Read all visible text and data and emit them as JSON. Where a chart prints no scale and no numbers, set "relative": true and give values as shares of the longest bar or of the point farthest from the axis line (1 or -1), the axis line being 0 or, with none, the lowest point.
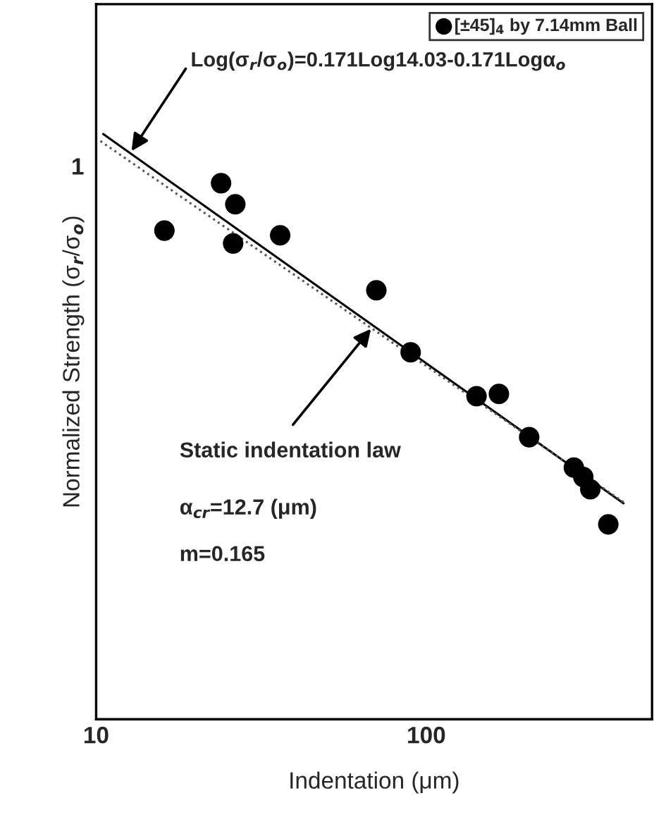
{
  "chart_data": {
    "type": "scatter",
    "xlabel": "Indentation (μm)",
    "ylabel": "Normalized Strength (σ$_{r}$/σ$_{o}$)",
    "log": "x",
    "xlim": [
      10,
      483
    ],
    "xticks": [
      10,
      100
    ],
    "relative": true,
    "grid": false,
    "legend": "top right",
    "series": [
      {
        "name": "[±45]$_{4}$ by 7.14mm Ball",
        "color": "#000000",
        "marker": "circle",
        "x": [
          16.1,
          23.9,
          26.4,
          26.0,
          36.1,
          70.6,
          89.7,
          142,
          166,
          205,
          280,
          299,
          314,
          356
        ],
        "values": [
          0.835,
          0.916,
          0.88,
          0.813,
          0.827,
          0.733,
          0.627,
          0.552,
          0.556,
          0.482,
          0.43,
          0.414,
          0.393,
          0.333
        ]
      },
      {
        "type": "line",
        "color": "#000000",
        "line_style": "solid",
        "x": [
          10.5,
          396
        ],
        "values": [
          1,
          0.369
        ]
      },
      {
        "type": "line",
        "color": "#555555",
        "line_style": "dotted",
        "x": [
          10.3,
          396
        ],
        "values": [
          0.988,
          0.371
        ]
      }
    ],
    "annotations": [
      {
        "text": "Log(σ$_{r}$/σ$_{o}$)=0.171Log14.03-0.171Logα$_{o}$",
        "x": 12.8,
        "y": 0.971
      },
      {
        "text": "Static indentation law",
        "x": 68,
        "y": 0.667
      },
      "α$_{cr}$=12.7 (μm)",
      "m=0.165",
      "1"
    ]
  }
}
